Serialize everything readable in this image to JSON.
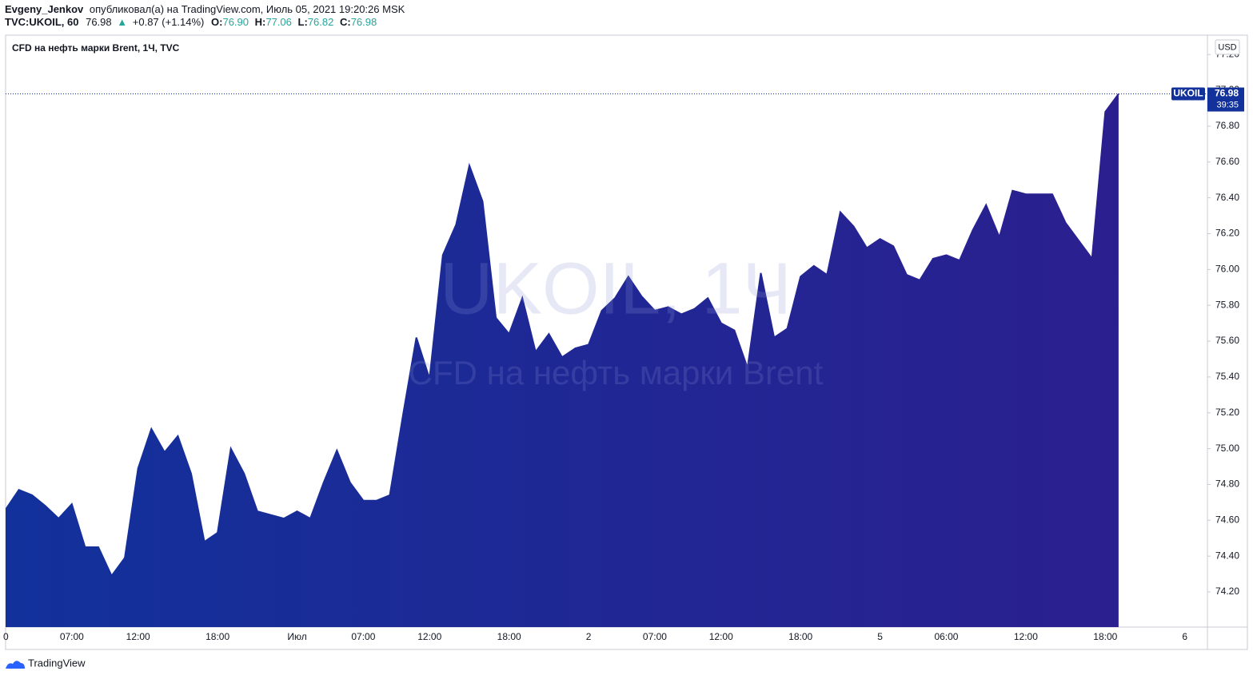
{
  "header": {
    "user": "Evgeny_Jenkov",
    "published": "опубликовал(а) на TradingView.com, Июль 05, 2021 19:20:26 MSK",
    "symbol": "TVC:UKOIL, 60",
    "price": "76.98",
    "arrow": "▲",
    "change": "+0.87 (+1.14%)",
    "o_label": "O:",
    "o": "76.90",
    "h_label": "H:",
    "h": "77.06",
    "l_label": "L:",
    "l": "76.82",
    "c_label": "C:",
    "c": "76.98"
  },
  "chart_data": {
    "type": "area",
    "title": "CFD на нефть марки Brent, 1Ч, TVC",
    "watermark": "UKOIL, 1Ч",
    "watermark_subtitle": "CFD на нефть марки Brent",
    "symbol": "UKOIL",
    "countdown": "39:35",
    "currency": "USD",
    "color": "#12319b",
    "color_top": "#2b1f8f",
    "categories": [
      "0",
      null,
      null,
      null,
      null,
      "07:00",
      null,
      null,
      null,
      null,
      "12:00",
      null,
      null,
      null,
      null,
      null,
      "18:00",
      null,
      null,
      null,
      null,
      null,
      "Июл",
      null,
      null,
      null,
      null,
      "07:00",
      null,
      null,
      null,
      null,
      "12:00",
      null,
      null,
      null,
      null,
      null,
      "18:00",
      null,
      null,
      null,
      null,
      null,
      "2",
      null,
      null,
      null,
      null,
      "07:00",
      null,
      null,
      null,
      null,
      "12:00",
      null,
      null,
      null,
      null,
      null,
      "18:00",
      null,
      null,
      null,
      null,
      null,
      "5",
      null,
      null,
      null,
      null,
      "06:00",
      null,
      null,
      null,
      null,
      null,
      "12:00",
      null,
      null,
      null,
      null,
      null,
      "18:00",
      null,
      null,
      null,
      null,
      null,
      "6"
    ],
    "values": [
      74.66,
      74.77,
      74.74,
      74.68,
      74.61,
      74.69,
      74.45,
      74.45,
      74.29,
      74.39,
      74.89,
      75.11,
      74.98,
      75.07,
      74.86,
      74.48,
      74.53,
      75.0,
      74.86,
      74.65,
      74.63,
      74.61,
      74.65,
      74.61,
      74.81,
      74.99,
      74.81,
      74.71,
      74.71,
      74.74,
      75.19,
      75.62,
      75.39,
      76.08,
      76.25,
      76.58,
      76.38,
      75.73,
      75.64,
      75.84,
      75.54,
      75.64,
      75.51,
      75.56,
      75.58,
      75.77,
      75.84,
      75.96,
      75.85,
      75.77,
      75.79,
      75.75,
      75.78,
      75.84,
      75.7,
      75.66,
      75.45,
      75.98,
      75.62,
      75.67,
      75.96,
      76.02,
      75.97,
      76.32,
      76.24,
      76.12,
      76.17,
      76.13,
      75.97,
      75.94,
      76.06,
      76.08,
      76.05,
      76.22,
      76.36,
      76.18,
      76.44,
      76.42,
      76.42,
      76.42,
      76.26,
      76.16,
      76.06,
      76.88,
      76.98,
      null,
      null,
      null,
      null,
      null
    ],
    "ylim": [
      74.004,
      77.308
    ],
    "yticks": [
      {
        "value": 74.2,
        "label": "74.20"
      },
      {
        "value": 74.4,
        "label": "74.40"
      },
      {
        "value": 74.6,
        "label": "74.60"
      },
      {
        "value": 74.8,
        "label": "74.80"
      },
      {
        "value": 75,
        "label": "75.00"
      },
      {
        "value": 75.2,
        "label": "75.20"
      },
      {
        "value": 75.4,
        "label": "75.40"
      },
      {
        "value": 75.6,
        "label": "75.60"
      },
      {
        "value": 75.8,
        "label": "75.80"
      },
      {
        "value": 76,
        "label": "76.00"
      },
      {
        "value": 76.2,
        "label": "76.20"
      },
      {
        "value": 76.4,
        "label": "76.40"
      },
      {
        "value": 76.6,
        "label": "76.60"
      },
      {
        "value": 76.8,
        "label": "76.80"
      },
      {
        "value": 77,
        "label": "77.00"
      },
      {
        "value": 77.2,
        "label": "77.20"
      }
    ],
    "grid": false
  },
  "footer": {
    "brand": "TradingView"
  }
}
